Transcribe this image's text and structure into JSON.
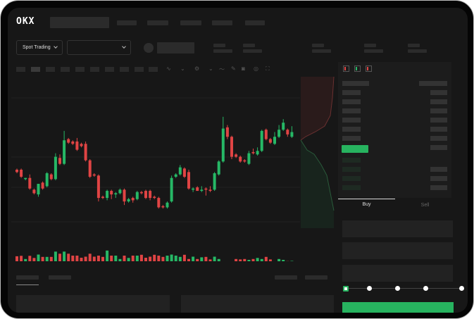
{
  "app": {
    "brand": "OKX"
  },
  "market": {
    "mode_select": "Spot Trading"
  },
  "trade": {
    "tabs": [
      {
        "label": "Buy",
        "active": true
      },
      {
        "label": "Sell",
        "active": false
      }
    ],
    "slider_percent": 0
  },
  "colors": {
    "up": "#26b866",
    "down": "#e04444",
    "background": "#171717",
    "accent": "#27b35f"
  },
  "chart_data": {
    "type": "candlestick",
    "candles": [
      [
        50,
        51,
        47,
        48
      ],
      [
        50,
        51,
        43,
        44
      ],
      [
        42,
        43,
        41,
        43
      ],
      [
        43,
        46,
        33,
        34
      ],
      [
        33,
        34,
        29,
        30
      ],
      [
        29,
        38,
        27,
        38
      ],
      [
        39,
        40,
        33,
        34
      ],
      [
        36,
        48,
        35,
        47
      ],
      [
        46,
        47,
        41,
        42
      ],
      [
        42,
        64,
        41,
        61
      ],
      [
        60,
        63,
        54,
        55
      ],
      [
        55,
        83,
        54,
        75
      ],
      [
        76,
        77,
        72,
        73
      ],
      [
        74,
        75,
        71,
        72
      ],
      [
        74,
        77,
        66,
        67
      ],
      [
        72,
        73,
        69,
        70
      ],
      [
        72,
        74,
        57,
        58
      ],
      [
        58,
        59,
        43,
        44
      ],
      [
        46,
        47,
        44,
        45
      ],
      [
        45,
        46,
        23,
        26
      ],
      [
        27,
        28,
        25,
        26
      ],
      [
        26,
        33,
        24,
        32
      ],
      [
        32,
        33,
        25,
        29
      ],
      [
        29,
        31,
        26,
        30
      ],
      [
        30,
        34,
        29,
        33
      ],
      [
        33,
        34,
        20,
        23
      ],
      [
        23,
        26,
        22,
        25
      ],
      [
        26,
        27,
        22,
        24
      ],
      [
        25,
        32,
        24,
        31
      ],
      [
        31,
        32,
        29,
        30
      ],
      [
        32,
        33,
        25,
        26
      ],
      [
        32,
        33,
        24,
        26
      ],
      [
        27,
        28,
        25,
        26
      ],
      [
        26,
        27,
        17,
        18
      ],
      [
        19,
        20,
        17,
        18
      ],
      [
        18,
        23,
        17,
        22
      ],
      [
        23,
        45,
        22,
        43
      ],
      [
        44,
        47,
        43,
        46
      ],
      [
        46,
        54,
        45,
        52
      ],
      [
        51,
        52,
        43,
        44
      ],
      [
        48,
        50,
        33,
        34
      ],
      [
        33,
        35,
        31,
        34
      ],
      [
        35,
        36,
        32,
        32
      ],
      [
        32,
        36,
        31,
        33
      ],
      [
        34,
        35,
        28,
        33
      ],
      [
        33,
        36,
        31,
        32
      ],
      [
        33,
        48,
        32,
        47
      ],
      [
        46,
        58,
        45,
        57
      ],
      [
        57,
        95,
        56,
        85
      ],
      [
        86,
        88,
        76,
        78
      ],
      [
        78,
        79,
        59,
        61
      ],
      [
        63,
        64,
        60,
        61
      ],
      [
        61,
        62,
        56,
        57
      ],
      [
        58,
        59,
        56,
        57
      ],
      [
        55,
        66,
        54,
        64
      ],
      [
        65,
        68,
        63,
        64
      ],
      [
        63,
        69,
        62,
        66
      ],
      [
        66,
        84,
        65,
        83
      ],
      [
        84,
        85,
        75,
        76
      ],
      [
        76,
        77,
        72,
        73
      ],
      [
        72,
        82,
        71,
        78
      ],
      [
        78,
        88,
        77,
        84
      ],
      [
        84,
        93,
        83,
        90
      ],
      [
        84,
        85,
        78,
        80
      ],
      [
        78,
        87,
        77,
        82
      ]
    ],
    "candle_fields": [
      "open",
      "high",
      "low",
      "close"
    ],
    "volume": [
      37,
      39,
      24,
      39,
      29,
      45,
      34,
      34,
      34,
      59,
      49,
      59,
      49,
      40,
      40,
      30,
      35,
      49,
      35,
      40,
      34,
      64,
      40,
      40,
      24,
      40,
      29,
      40,
      40,
      44,
      30,
      35,
      44,
      40,
      34,
      40,
      45,
      40,
      34,
      44,
      24,
      35,
      24,
      32,
      34,
      22,
      35,
      24,
      9,
      10,
      9,
      24,
      22,
      24,
      20,
      24,
      29,
      24,
      34,
      22,
      12,
      24,
      20,
      14,
      15
    ]
  }
}
